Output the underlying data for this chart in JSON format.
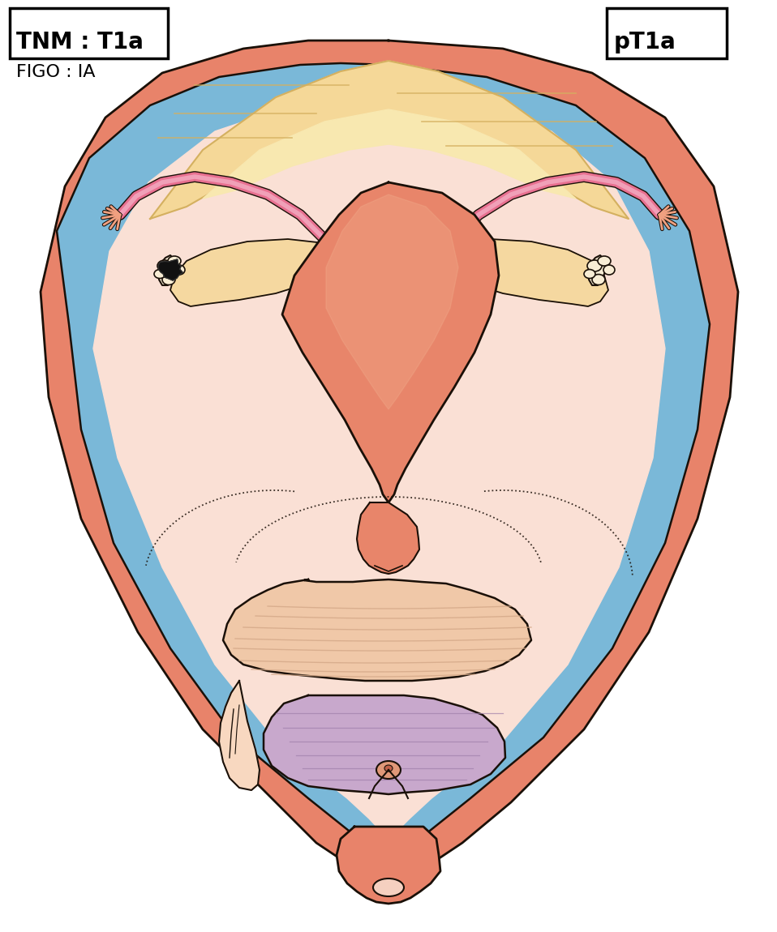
{
  "title_left": "TNM : T1a",
  "title_right": "pT1a",
  "subtitle": "FIGO : IA",
  "bg_color": "#ffffff",
  "skin_outer": "#E8836A",
  "skin_mid": "#F0A080",
  "skin_inner": "#FAE0D5",
  "skin_light": "#FCEEE8",
  "peritoneum": "#7AB8D8",
  "uterus_fill": "#E8856A",
  "uterus_light": "#F0A888",
  "tube_pink": "#E87090",
  "tube_light": "#F0A0B8",
  "ovary_fill": "#F5D8A0",
  "ovary_outline": "#C8A060",
  "tumor_dark": "#111111",
  "bladder_fill": "#C8A8CC",
  "bladder_light": "#DCC0DD",
  "bowel_fill": "#F0C8A8",
  "bowel_line": "#D4A888",
  "fat_fill": "#F5D898",
  "fat_dark": "#D4B060",
  "outline": "#1A1008",
  "cervix_fill": "#E09878"
}
